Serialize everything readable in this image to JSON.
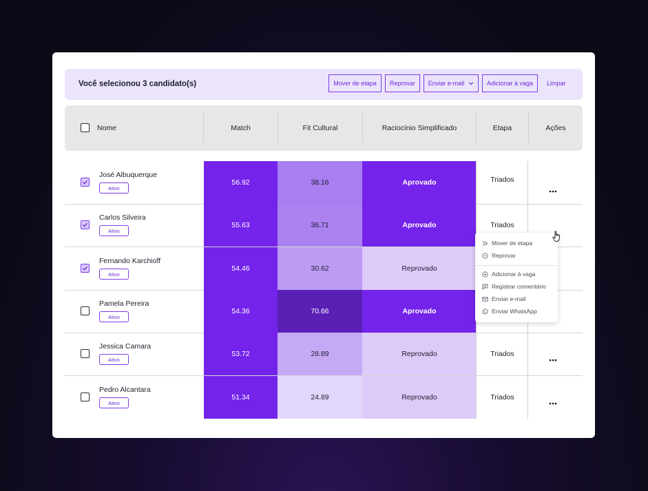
{
  "selection": {
    "text": "Você selecionou 3 candidato(s)",
    "buttons": {
      "move": "Mover de etapa",
      "reject": "Reprovar",
      "email": "Enviar e-mail",
      "add": "Adicionar à vaga",
      "clear": "Limpar"
    }
  },
  "table": {
    "headers": {
      "name": "Nome",
      "match": "Match",
      "fit": "Fit Cultural",
      "reasoning": "Raciocínio Simplificado",
      "stage": "Etapa",
      "actions": "Ações"
    },
    "rows": [
      {
        "name": "José Albuquerque",
        "status": "Ativo",
        "checked": true,
        "match": "56.92",
        "fit": "38.16",
        "reasoning": "Aprovado",
        "stage": "Triados"
      },
      {
        "name": "Carlos Silveira",
        "status": "Ativo",
        "checked": true,
        "match": "55.63",
        "fit": "36.71",
        "reasoning": "Aprovado",
        "stage": "Triados"
      },
      {
        "name": "Fernando Karchioff",
        "status": "Ativo",
        "checked": true,
        "match": "54.46",
        "fit": "30.62",
        "reasoning": "Reprovado",
        "stage": ""
      },
      {
        "name": "Pamela Pereira",
        "status": "Ativo",
        "checked": false,
        "match": "54.36",
        "fit": "70.66",
        "reasoning": "Aprovado",
        "stage": ""
      },
      {
        "name": "Jessica Camara",
        "status": "Ativo",
        "checked": false,
        "match": "53.72",
        "fit": "28.89",
        "reasoning": "Reprovado",
        "stage": "Triados"
      },
      {
        "name": "Pedro Alcantara",
        "status": "Ativo",
        "checked": false,
        "match": "51.34",
        "fit": "24.89",
        "reasoning": "Reprovado",
        "stage": "Triados"
      }
    ]
  },
  "context_menu": {
    "items": [
      "Mover de etapa",
      "Reprovar",
      "Adicionar à vaga",
      "Registrar comentário",
      "Enviar e-mail",
      "Enviar WhatsApp"
    ]
  },
  "colors": {
    "match": "#7424ea",
    "fit": [
      "#a87ef0",
      "#ab82f0",
      "#bc9bf3",
      "#5a1fb5",
      "#c6a9f5",
      "#e3d6fb"
    ],
    "approved_bg": "#7424ea",
    "rejected_bg": "#dccbf9",
    "accent": "#7d3ae8"
  },
  "icons": {
    "move": "double-chevron-right-icon",
    "reject": "minus-circle-icon",
    "add": "plus-circle-icon",
    "comment": "comment-icon",
    "email": "mail-icon",
    "whatsapp": "whatsapp-icon",
    "actions": "more-horizontal-icon",
    "cursor": "hand-pointer-icon"
  }
}
